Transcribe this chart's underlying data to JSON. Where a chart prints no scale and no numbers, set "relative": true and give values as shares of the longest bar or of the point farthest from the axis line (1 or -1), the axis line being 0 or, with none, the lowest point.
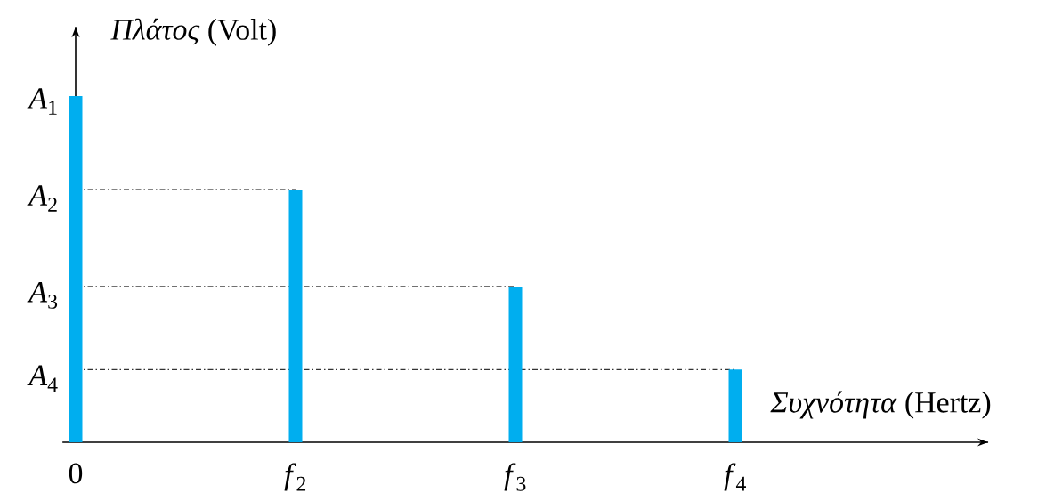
{
  "chart_data": {
    "type": "bar",
    "relative": true,
    "categories": [
      "0",
      "*f*$_{2}$",
      "*f*$_{3}$",
      "*f*$_{4}$"
    ],
    "values": [
      1,
      0.73,
      0.45,
      0.21
    ],
    "color": "#00aeef",
    "xlabel": "*Συχνότητα* (Hertz)",
    "ylabel": "*Πλάτος* (Volt)",
    "annotations": [
      {
        "text": "*A*$_{1}$",
        "x": "0",
        "y": 1
      }
    ],
    "ref_lines": [
      {
        "axis": "y",
        "value": 0.73,
        "label": "*A*$_{2}$",
        "line_style": "dashed",
        "color": "#000000"
      },
      {
        "axis": "y",
        "value": 0.45,
        "label": "*A*$_{3}$",
        "line_style": "dashed",
        "color": "#000000"
      },
      {
        "axis": "y",
        "value": 0.21,
        "label": "*A*$_{4}$",
        "line_style": "dashed",
        "color": "#000000"
      }
    ]
  }
}
